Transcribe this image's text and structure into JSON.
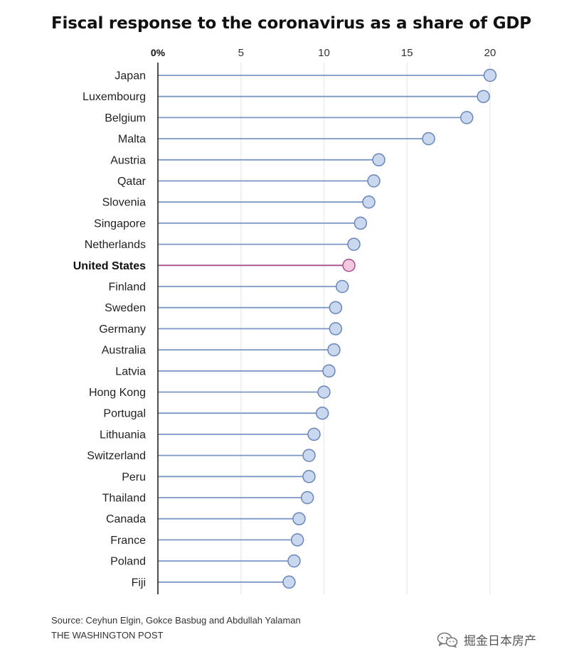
{
  "chart_data": {
    "type": "lollipop",
    "title": "Fiscal response to the coronavirus as a share of GDP",
    "x_ticks": [
      {
        "value": 0,
        "label": "0%"
      },
      {
        "value": 5,
        "label": "5"
      },
      {
        "value": 10,
        "label": "10"
      },
      {
        "value": 15,
        "label": "15"
      },
      {
        "value": 20,
        "label": "20"
      }
    ],
    "xlim": [
      0,
      20
    ],
    "grid": true,
    "highlight": "United States",
    "categories": [
      "Japan",
      "Luxembourg",
      "Belgium",
      "Malta",
      "Austria",
      "Qatar",
      "Slovenia",
      "Singapore",
      "Netherlands",
      "United States",
      "Finland",
      "Sweden",
      "Germany",
      "Australia",
      "Latvia",
      "Hong Kong",
      "Portugal",
      "Lithuania",
      "Switzerland",
      "Peru",
      "Thailand",
      "Canada",
      "France",
      "Poland",
      "Fiji"
    ],
    "values": [
      20.0,
      19.6,
      18.6,
      16.3,
      13.3,
      13.0,
      12.7,
      12.2,
      11.8,
      11.5,
      11.1,
      10.7,
      10.7,
      10.6,
      10.3,
      10.0,
      9.9,
      9.4,
      9.1,
      9.1,
      9.0,
      8.5,
      8.4,
      8.2,
      7.9
    ],
    "colors": {
      "stem": "#7b96c4",
      "dot_fill": "#c9d8ee",
      "dot_stroke": "#6a86b8",
      "highlight_stem": "#a8508d",
      "highlight_fill": "#f3c9df",
      "highlight_stroke": "#a8508d",
      "grid": "#e6e6e6",
      "axis": "#222222"
    }
  },
  "footer": {
    "source": "Source: Ceyhun Elgin, Gokce Basbug and Abdullah Yalaman",
    "publisher": "THE WASHINGTON POST"
  },
  "watermark": {
    "text": "掘金日本房产",
    "icon": "wechat-icon"
  }
}
